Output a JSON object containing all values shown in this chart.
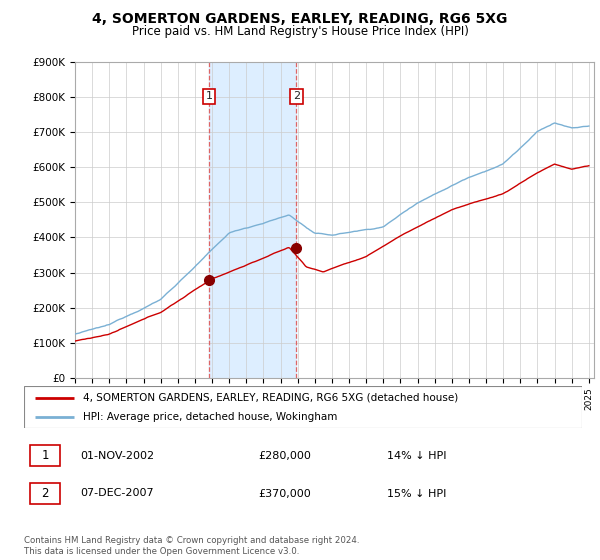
{
  "title": "4, SOMERTON GARDENS, EARLEY, READING, RG6 5XG",
  "subtitle": "Price paid vs. HM Land Registry's House Price Index (HPI)",
  "ylim": [
    0,
    900000
  ],
  "yticks": [
    0,
    100000,
    200000,
    300000,
    400000,
    500000,
    600000,
    700000,
    800000,
    900000
  ],
  "ytick_labels": [
    "£0",
    "£100K",
    "£200K",
    "£300K",
    "£400K",
    "£500K",
    "£600K",
    "£700K",
    "£800K",
    "£900K"
  ],
  "purchase1_date": 2002.83,
  "purchase1_price": 280000,
  "purchase1_label": "1",
  "purchase2_date": 2007.92,
  "purchase2_price": 370000,
  "purchase2_label": "2",
  "hpi_color": "#7ab0d4",
  "price_color": "#cc0000",
  "shade_color": "#ddeeff",
  "vline_color": "#dd6666",
  "legend_line1": "4, SOMERTON GARDENS, EARLEY, READING, RG6 5XG (detached house)",
  "legend_line2": "HPI: Average price, detached house, Wokingham",
  "table_row1": [
    "1",
    "01-NOV-2002",
    "£280,000",
    "14% ↓ HPI"
  ],
  "table_row2": [
    "2",
    "07-DEC-2007",
    "£370,000",
    "15% ↓ HPI"
  ],
  "footnote": "Contains HM Land Registry data © Crown copyright and database right 2024.\nThis data is licensed under the Open Government Licence v3.0.",
  "background_color": "#ffffff"
}
